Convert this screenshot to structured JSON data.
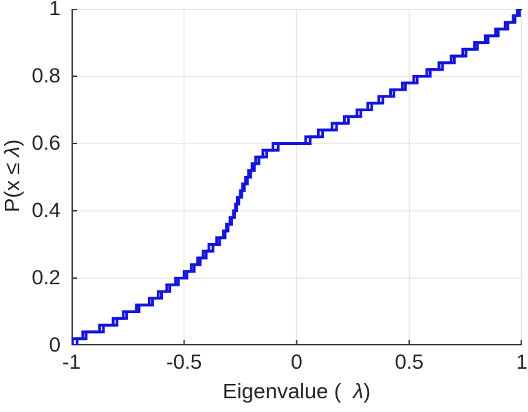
{
  "figure": {
    "xlabel": {
      "prefix": "Eigenvalue (  ",
      "lambda": "λ",
      "suffix": ")"
    },
    "ylabel": {
      "prefix": "P(x ≤ ",
      "lambda": "λ",
      "suffix": ")"
    }
  },
  "colors": {
    "line": "#1414dd",
    "axis": "#3b3b3b",
    "grid": "#e2e2e2",
    "text": "#262626",
    "background": "#ffffff"
  },
  "chart_data": {
    "type": "step",
    "subtype": "empirical-cdf",
    "title": "",
    "xlabel": "Eigenvalue ( λ)",
    "ylabel": "P(x ≤ λ)",
    "xlim": [
      -1,
      1
    ],
    "ylim": [
      0,
      1
    ],
    "grid": true,
    "legend": "none",
    "x_ticks": {
      "values": [
        -1,
        -0.5,
        0,
        0.5,
        1
      ],
      "labels": [
        "-1",
        "-0.5",
        "0",
        "0.5",
        "1"
      ]
    },
    "y_ticks": {
      "values": [
        0,
        0.2,
        0.4,
        0.6,
        0.8,
        1
      ],
      "labels": [
        "0",
        "0.2",
        "0.4",
        "0.6",
        "0.8",
        "1"
      ]
    },
    "step_height": 0.02,
    "series": [
      {
        "name": "ecdf-1",
        "values": [
          -0.995,
          -0.935,
          -0.875,
          -0.815,
          -0.755,
          -0.7,
          -0.655,
          -0.615,
          -0.577,
          -0.538,
          -0.5,
          -0.468,
          -0.44,
          -0.415,
          -0.39,
          -0.355,
          -0.325,
          -0.312,
          -0.296,
          -0.281,
          -0.272,
          -0.264,
          -0.25,
          -0.24,
          -0.227,
          -0.214,
          -0.198,
          -0.182,
          -0.15,
          -0.105,
          0.04,
          0.096,
          0.157,
          0.212,
          0.268,
          0.316,
          0.365,
          0.417,
          0.469,
          0.52,
          0.578,
          0.632,
          0.686,
          0.738,
          0.79,
          0.838,
          0.884,
          0.926,
          0.962,
          0.99
        ]
      },
      {
        "name": "ecdf-2",
        "values": [
          -0.975,
          -0.95,
          -0.858,
          -0.798,
          -0.77,
          -0.712,
          -0.64,
          -0.6,
          -0.563,
          -0.525,
          -0.487,
          -0.455,
          -0.428,
          -0.402,
          -0.372,
          -0.342,
          -0.318,
          -0.305,
          -0.289,
          -0.276,
          -0.267,
          -0.257,
          -0.244,
          -0.232,
          -0.219,
          -0.204,
          -0.188,
          -0.168,
          -0.133,
          -0.082,
          0.06,
          0.115,
          0.177,
          0.23,
          0.285,
          0.333,
          0.383,
          0.432,
          0.483,
          0.535,
          0.593,
          0.648,
          0.7,
          0.752,
          0.803,
          0.85,
          0.895,
          0.938,
          0.97,
          0.98
        ]
      }
    ]
  }
}
